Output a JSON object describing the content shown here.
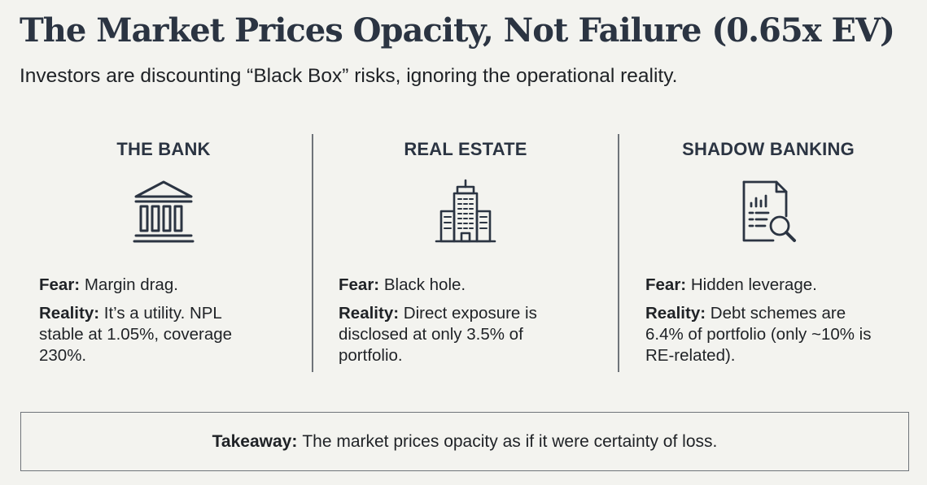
{
  "header": {
    "title": "The Market Prices Opacity, Not Failure (0.65x EV)",
    "subtitle": "Investors are discounting “Black Box” risks, ignoring the operational reality."
  },
  "columns": [
    {
      "title": "THE BANK",
      "icon": "bank-building-icon",
      "fear_label": "Fear:",
      "fear_text": " Margin drag.",
      "reality_label": "Reality:",
      "reality_lines": [
        "It’s a utility. NPL",
        "stable at 1.05%, coverage",
        "230%."
      ]
    },
    {
      "title": "REAL ESTATE",
      "icon": "skyscraper-icon",
      "fear_label": "Fear:",
      "fear_text": " Black hole.",
      "reality_label": "Reality:",
      "reality_lines": [
        "Direct exposure is",
        "disclosed at only 3.5% of",
        "portfolio."
      ]
    },
    {
      "title": "SHADOW BANKING",
      "icon": "document-magnifier-icon",
      "fear_label": "Fear:",
      "fear_text": " Hidden leverage.",
      "reality_label": "Reality:",
      "reality_lines": [
        "Debt schemes are",
        "6.4% of portfolio (only ~10% is",
        "RE-related)."
      ]
    }
  ],
  "takeaway": {
    "label": "Takeaway:",
    "text": "The market prices opacity as if it were certainty of loss."
  },
  "colors": {
    "background": "#f3f3ef",
    "title": "#2b3442",
    "text": "#1f2226",
    "rule": "#6f747a"
  }
}
